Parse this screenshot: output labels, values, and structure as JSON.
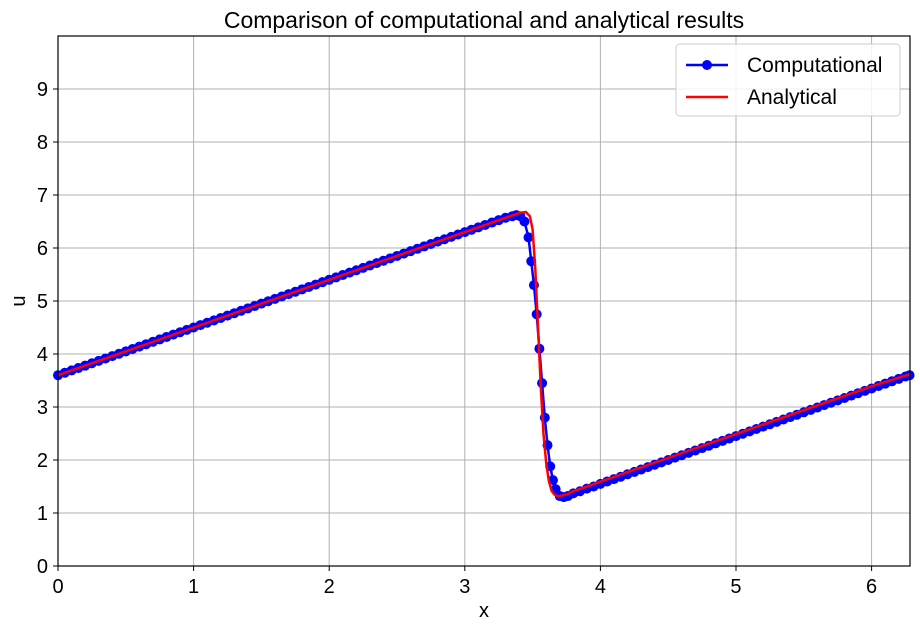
{
  "chart_data": {
    "type": "line",
    "title": "Comparison of computational and analytical results",
    "xlabel": "x",
    "ylabel": "u",
    "xlim": [
      0,
      6.2832
    ],
    "ylim": [
      0,
      10
    ],
    "x_ticks": [
      0,
      1,
      2,
      3,
      4,
      5,
      6
    ],
    "y_ticks": [
      0,
      1,
      2,
      3,
      4,
      5,
      6,
      7,
      8,
      9
    ],
    "grid": true,
    "legend_position": "top-right",
    "series": [
      {
        "name": "Computational",
        "color": "#0000ff",
        "marker": "circle",
        "x": [
          0.0,
          0.05,
          0.1,
          0.15,
          0.2,
          0.25,
          0.3,
          0.35,
          0.4,
          0.45,
          0.5,
          0.55,
          0.6,
          0.65,
          0.7,
          0.75,
          0.8,
          0.85,
          0.9,
          0.95,
          1.0,
          1.05,
          1.1,
          1.15,
          1.2,
          1.25,
          1.3,
          1.35,
          1.4,
          1.45,
          1.5,
          1.55,
          1.6,
          1.65,
          1.7,
          1.75,
          1.8,
          1.85,
          1.9,
          1.95,
          2.0,
          2.05,
          2.1,
          2.15,
          2.2,
          2.25,
          2.3,
          2.35,
          2.4,
          2.45,
          2.5,
          2.55,
          2.6,
          2.65,
          2.7,
          2.75,
          2.8,
          2.85,
          2.9,
          2.95,
          3.0,
          3.05,
          3.1,
          3.15,
          3.2,
          3.25,
          3.3,
          3.35,
          3.38,
          3.41,
          3.44,
          3.47,
          3.49,
          3.51,
          3.53,
          3.55,
          3.57,
          3.59,
          3.61,
          3.63,
          3.65,
          3.67,
          3.7,
          3.73,
          3.76,
          3.8,
          3.85,
          3.9,
          3.95,
          4.0,
          4.05,
          4.1,
          4.15,
          4.2,
          4.25,
          4.3,
          4.35,
          4.4,
          4.45,
          4.5,
          4.55,
          4.6,
          4.65,
          4.7,
          4.75,
          4.8,
          4.85,
          4.9,
          4.95,
          5.0,
          5.05,
          5.1,
          5.15,
          5.2,
          5.25,
          5.3,
          5.35,
          5.4,
          5.45,
          5.5,
          5.55,
          5.6,
          5.65,
          5.7,
          5.75,
          5.8,
          5.85,
          5.9,
          5.95,
          6.0,
          6.05,
          6.1,
          6.15,
          6.2,
          6.25,
          6.28
        ],
        "y": [
          3.6,
          3.645,
          3.69,
          3.735,
          3.78,
          3.825,
          3.87,
          3.915,
          3.96,
          4.005,
          4.05,
          4.095,
          4.14,
          4.185,
          4.23,
          4.275,
          4.32,
          4.365,
          4.41,
          4.455,
          4.5,
          4.545,
          4.59,
          4.635,
          4.68,
          4.725,
          4.77,
          4.815,
          4.86,
          4.905,
          4.95,
          4.995,
          5.04,
          5.085,
          5.13,
          5.175,
          5.22,
          5.265,
          5.31,
          5.355,
          5.4,
          5.445,
          5.49,
          5.535,
          5.58,
          5.625,
          5.67,
          5.715,
          5.76,
          5.805,
          5.85,
          5.895,
          5.94,
          5.985,
          6.03,
          6.075,
          6.12,
          6.165,
          6.21,
          6.255,
          6.3,
          6.345,
          6.39,
          6.435,
          6.48,
          6.525,
          6.57,
          6.6,
          6.62,
          6.6,
          6.5,
          6.2,
          5.75,
          5.3,
          4.75,
          4.1,
          3.45,
          2.8,
          2.28,
          1.88,
          1.62,
          1.45,
          1.32,
          1.3,
          1.32,
          1.37,
          1.41,
          1.46,
          1.5,
          1.55,
          1.595,
          1.64,
          1.685,
          1.73,
          1.775,
          1.82,
          1.865,
          1.91,
          1.955,
          2.0,
          2.045,
          2.09,
          2.135,
          2.18,
          2.225,
          2.27,
          2.315,
          2.36,
          2.405,
          2.45,
          2.495,
          2.54,
          2.585,
          2.63,
          2.675,
          2.72,
          2.765,
          2.81,
          2.855,
          2.9,
          2.945,
          2.99,
          3.035,
          3.08,
          3.125,
          3.17,
          3.215,
          3.26,
          3.305,
          3.35,
          3.395,
          3.44,
          3.485,
          3.53,
          3.575,
          3.6
        ]
      },
      {
        "name": "Analytical",
        "color": "#ff0000",
        "marker": "none",
        "x": [
          0.0,
          0.5,
          1.0,
          1.5,
          2.0,
          2.5,
          3.0,
          3.3,
          3.4,
          3.45,
          3.48,
          3.5,
          3.52,
          3.54,
          3.56,
          3.58,
          3.6,
          3.62,
          3.64,
          3.66,
          3.68,
          3.7,
          3.75,
          3.8,
          4.0,
          4.5,
          5.0,
          5.5,
          6.0,
          6.2832
        ],
        "y": [
          3.6,
          4.05,
          4.5,
          4.95,
          5.4,
          5.85,
          6.3,
          6.57,
          6.66,
          6.68,
          6.6,
          6.35,
          5.6,
          4.5,
          3.4,
          2.5,
          1.95,
          1.6,
          1.42,
          1.35,
          1.32,
          1.32,
          1.35,
          1.41,
          1.59,
          2.04,
          2.49,
          2.94,
          3.39,
          3.62
        ]
      }
    ]
  }
}
